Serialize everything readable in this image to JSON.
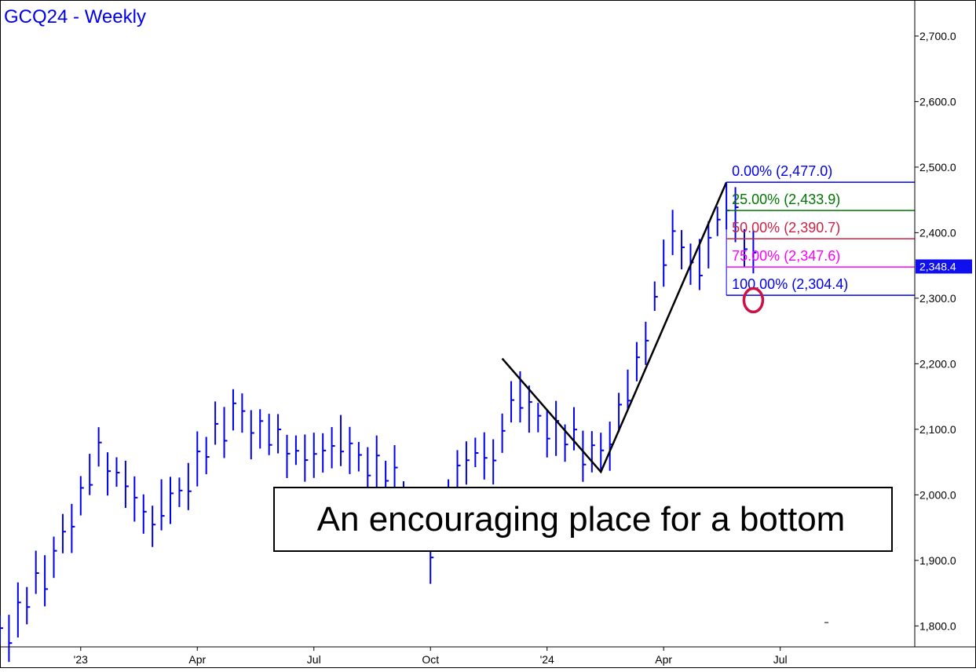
{
  "chart_data": {
    "type": "bar",
    "subtype": "ohlc-weekly",
    "title": "GCQ24 - Weekly",
    "colors": {
      "bars": "#0000ee",
      "frame": "#000000",
      "grid": "none",
      "last_price_bg": "#1010ee"
    },
    "x_axis": {
      "range": [
        "2022-10-31",
        "2024-10-14"
      ],
      "tick_labels": [
        {
          "label": "'23",
          "date": "2023-01-02"
        },
        {
          "label": "Apr",
          "date": "2023-04-03"
        },
        {
          "label": "Jul",
          "date": "2023-07-03"
        },
        {
          "label": "Oct",
          "date": "2023-10-02"
        },
        {
          "label": "'24",
          "date": "2024-01-01"
        },
        {
          "label": "Apr",
          "date": "2024-04-01"
        },
        {
          "label": "Jul",
          "date": "2024-07-01"
        }
      ]
    },
    "y_axis": {
      "position": "right",
      "ylim": [
        1768,
        2755
      ],
      "tick_labels": [
        "1,800.0",
        "1,900.0",
        "2,000.0",
        "2,100.0",
        "2,200.0",
        "2,300.0",
        "2,400.0",
        "2,500.0",
        "2,600.0",
        "2,700.0"
      ],
      "tick_values": [
        1800,
        1900,
        2000,
        2100,
        2200,
        2300,
        2400,
        2500,
        2600,
        2700
      ]
    },
    "grid": false,
    "last_price": {
      "label": "2,348.4",
      "value": 2348.4
    },
    "anchors": [
      {
        "date": "2022-11-07",
        "price": 1790
      },
      {
        "date": "2022-12-12",
        "price": 1905
      },
      {
        "date": "2023-01-16",
        "price": 2060
      },
      {
        "date": "2023-02-27",
        "price": 1960
      },
      {
        "date": "2023-03-20",
        "price": 2000
      },
      {
        "date": "2023-05-01",
        "price": 2130
      },
      {
        "date": "2023-06-26",
        "price": 2050
      },
      {
        "date": "2023-07-17",
        "price": 2080
      },
      {
        "date": "2023-09-04",
        "price": 2020
      },
      {
        "date": "2023-10-02",
        "price": 1920
      },
      {
        "date": "2023-10-30",
        "price": 2060
      },
      {
        "date": "2023-11-20",
        "price": 2050
      },
      {
        "date": "2023-12-04",
        "price": 2150
      },
      {
        "date": "2024-01-08",
        "price": 2090
      },
      {
        "date": "2024-02-12",
        "price": 2060
      },
      {
        "date": "2024-03-11",
        "price": 2190
      },
      {
        "date": "2024-04-08",
        "price": 2400
      },
      {
        "date": "2024-04-29",
        "price": 2340
      },
      {
        "date": "2024-05-20",
        "price": 2450
      },
      {
        "date": "2024-06-10",
        "price": 2348
      }
    ],
    "bar_noise": [
      0.3,
      -0.5,
      0.8,
      -0.2,
      0.6,
      -0.9,
      0.4,
      0.1,
      -0.6,
      0.7,
      -0.3,
      0.9,
      -0.8,
      0.2,
      0.5,
      -0.4,
      0.0,
      -0.7,
      0.3,
      0.6
    ],
    "abc_pattern": [
      {
        "point": "A",
        "date": "2023-11-27",
        "price": 2208
      },
      {
        "point": "B",
        "date": "2024-02-12",
        "price": 2035
      },
      {
        "point": "C",
        "date": "2024-05-20",
        "price": 2477
      }
    ],
    "retracements": [
      {
        "label": "0.00% (2,477.0)",
        "value": 2477.0,
        "color": "#0000ee"
      },
      {
        "label": "25.00% (2,433.9)",
        "value": 2433.9,
        "color": "#007700"
      },
      {
        "label": "50.00% (2,390.7)",
        "value": 2390.7,
        "color": "#cc2244"
      },
      {
        "label": "75.00% (2,347.6)",
        "value": 2347.6,
        "color": "#ff00ff"
      },
      {
        "label": "100.00% (2,304.4)",
        "value": 2304.4,
        "color": "#0000ee"
      }
    ],
    "highlight": {
      "shape": "circle",
      "color": "#cc1144",
      "date": "2024-06-10",
      "price": 2297
    },
    "annotation": {
      "text": "An encouraging place for a bottom"
    }
  }
}
